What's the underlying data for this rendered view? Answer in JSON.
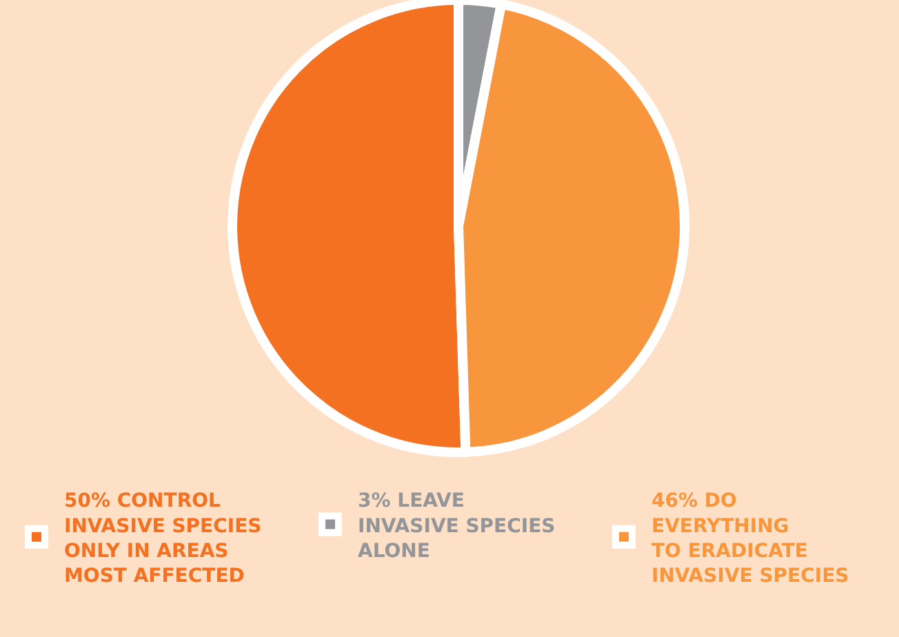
{
  "chart_data": {
    "type": "pie",
    "categories": [
      "50% CONTROL\nINVASIVE SPECIES\nONLY IN AREAS\nMOST AFFECTED",
      "3% LEAVE\nINVASIVE SPECIES\nALONE",
      "46% DO\nEVERYTHING\nTO ERADICATE\nINVASIVE SPECIES"
    ],
    "values": [
      50,
      3,
      46
    ],
    "colors": [
      "#f37121",
      "#939598",
      "#f7963d"
    ],
    "legend": "bottom"
  }
}
